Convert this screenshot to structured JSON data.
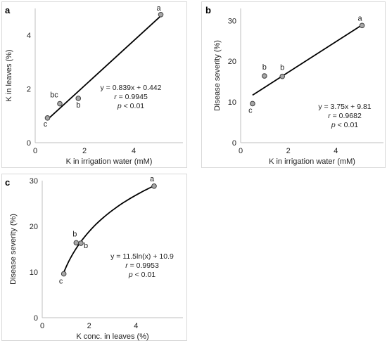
{
  "chart_data": [
    {
      "panel": "a",
      "type": "scatter",
      "xlabel": "K in irrigation water (mM)",
      "ylabel": "K in leaves (%)",
      "xlim": [
        0,
        6
      ],
      "ylim": [
        0,
        5
      ],
      "xticks": [
        "0",
        "2",
        "4"
      ],
      "yticks": [
        "0",
        "2",
        "4"
      ],
      "points": [
        {
          "x": 0.5,
          "y": 0.92,
          "label": "c"
        },
        {
          "x": 1.0,
          "y": 1.45,
          "label": "bc"
        },
        {
          "x": 1.75,
          "y": 1.65,
          "label": "b"
        },
        {
          "x": 5.1,
          "y": 4.77,
          "label": "a"
        }
      ],
      "fit": {
        "kind": "linear",
        "slope": 0.839,
        "intercept": 0.442,
        "x_range": [
          0.5,
          5.1
        ]
      },
      "annotation": [
        "y = 0.839x + 0.442",
        "r = 0.9945",
        "p < 0.01"
      ],
      "grid": false
    },
    {
      "panel": "b",
      "type": "scatter",
      "xlabel": "K in irrigation water (mM)",
      "ylabel": "Disease severity (%)",
      "xlim": [
        0,
        6
      ],
      "ylim": [
        0,
        33
      ],
      "xticks": [
        "0",
        "2",
        "4"
      ],
      "yticks": [
        "0",
        "10",
        "20",
        "30"
      ],
      "points": [
        {
          "x": 0.5,
          "y": 9.6,
          "label": "c"
        },
        {
          "x": 1.0,
          "y": 16.4,
          "label": "b"
        },
        {
          "x": 1.75,
          "y": 16.3,
          "label": "b"
        },
        {
          "x": 5.1,
          "y": 28.8,
          "label": "a"
        }
      ],
      "fit": {
        "kind": "linear",
        "slope": 3.75,
        "intercept": 9.81,
        "x_range": [
          0.5,
          5.1
        ]
      },
      "annotation": [
        "y = 3.75x + 9.81",
        "r = 0.9682",
        "p < 0.01"
      ],
      "grid": false
    },
    {
      "panel": "c",
      "type": "scatter",
      "xlabel": "K conc. in leaves (%)",
      "ylabel": "Disease severity (%)",
      "xlim": [
        0,
        6
      ],
      "ylim": [
        0,
        30
      ],
      "xticks": [
        "0",
        "2",
        "4"
      ],
      "yticks": [
        "0",
        "10",
        "20",
        "30"
      ],
      "points": [
        {
          "x": 0.92,
          "y": 9.6,
          "label": "c"
        },
        {
          "x": 1.45,
          "y": 16.4,
          "label": "b"
        },
        {
          "x": 1.65,
          "y": 16.3,
          "label": "b"
        },
        {
          "x": 4.77,
          "y": 28.8,
          "label": "a"
        }
      ],
      "fit": {
        "kind": "log",
        "a": 11.5,
        "b": 10.9,
        "x_range": [
          0.92,
          4.77
        ]
      },
      "annotation": [
        "y = 11.5ln(x) + 10.9",
        "r = 0.9953",
        "p < 0.01"
      ],
      "grid": false
    }
  ]
}
